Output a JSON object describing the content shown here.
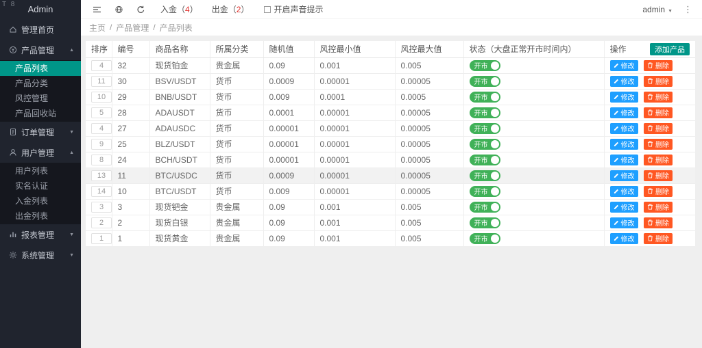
{
  "app": {
    "logo_corner": "T 8",
    "title": "Admin"
  },
  "sidebar": {
    "items": [
      {
        "id": "home",
        "label": "管理首页",
        "icon": "home-icon",
        "arrow": null,
        "children": []
      },
      {
        "id": "products",
        "label": "产品管理",
        "icon": "product-icon",
        "arrow": "up",
        "children": [
          {
            "label": "产品列表",
            "active": true
          },
          {
            "label": "产品分类",
            "active": false
          },
          {
            "label": "风控管理",
            "active": false
          },
          {
            "label": "产品回收站",
            "active": false
          }
        ]
      },
      {
        "id": "orders",
        "label": "订单管理",
        "icon": "order-icon",
        "arrow": "down",
        "children": []
      },
      {
        "id": "users",
        "label": "用户管理",
        "icon": "user-icon",
        "arrow": "up",
        "children": [
          {
            "label": "用户列表",
            "active": false
          },
          {
            "label": "实名认证",
            "active": false
          },
          {
            "label": "入金列表",
            "active": false
          },
          {
            "label": "出金列表",
            "active": false
          }
        ]
      },
      {
        "id": "reports",
        "label": "报表管理",
        "icon": "report-icon",
        "arrow": "down",
        "children": []
      },
      {
        "id": "system",
        "label": "系统管理",
        "icon": "gear-icon",
        "arrow": "down",
        "children": []
      }
    ]
  },
  "topbar": {
    "deposit": {
      "prefix": "入金（",
      "count": "4",
      "suffix": "）"
    },
    "withdraw": {
      "prefix": "出金（",
      "count": "2",
      "suffix": "）"
    },
    "sound_alert_label": "开启声音提示",
    "user": "admin"
  },
  "breadcrumb": {
    "items": [
      "主页",
      "产品管理",
      "产品列表"
    ],
    "separator": "/"
  },
  "table": {
    "headers": [
      {
        "id": "sort",
        "label": "排序"
      },
      {
        "id": "id",
        "label": "编号"
      },
      {
        "id": "name",
        "label": "商品名称"
      },
      {
        "id": "category",
        "label": "所属分类"
      },
      {
        "id": "random",
        "label": "随机值"
      },
      {
        "id": "risk-min",
        "label": "风控最小值"
      },
      {
        "id": "risk-max",
        "label": "风控最大值"
      },
      {
        "id": "status",
        "label": "状态（大盘正常开市时间内）"
      },
      {
        "id": "ops",
        "label": "操作"
      }
    ],
    "add_button_label": "添加产品",
    "toggle_label": "开市",
    "edit_label": "修改",
    "delete_label": "删除",
    "rows": [
      {
        "sort": "4",
        "id": "32",
        "name": "现货铂金",
        "category": "贵金属",
        "random": "0.09",
        "risk_min": "0.001",
        "risk_max": "0.005",
        "status": "on",
        "highlight": false
      },
      {
        "sort": "11",
        "id": "30",
        "name": "BSV/USDT",
        "category": "货币",
        "random": "0.0009",
        "risk_min": "0.00001",
        "risk_max": "0.00005",
        "status": "on",
        "highlight": false
      },
      {
        "sort": "10",
        "id": "29",
        "name": "BNB/USDT",
        "category": "货币",
        "random": "0.009",
        "risk_min": "0.0001",
        "risk_max": "0.0005",
        "status": "on",
        "highlight": false
      },
      {
        "sort": "5",
        "id": "28",
        "name": "ADAUSDT",
        "category": "货币",
        "random": "0.0001",
        "risk_min": "0.00001",
        "risk_max": "0.00005",
        "status": "on",
        "highlight": false
      },
      {
        "sort": "4",
        "id": "27",
        "name": "ADAUSDC",
        "category": "货币",
        "random": "0.00001",
        "risk_min": "0.00001",
        "risk_max": "0.00005",
        "status": "on",
        "highlight": false
      },
      {
        "sort": "9",
        "id": "25",
        "name": "BLZ/USDT",
        "category": "货币",
        "random": "0.00001",
        "risk_min": "0.00001",
        "risk_max": "0.00005",
        "status": "on",
        "highlight": false
      },
      {
        "sort": "8",
        "id": "24",
        "name": "BCH/USDT",
        "category": "货币",
        "random": "0.00001",
        "risk_min": "0.00001",
        "risk_max": "0.00005",
        "status": "on",
        "highlight": false
      },
      {
        "sort": "13",
        "id": "11",
        "name": "BTC/USDC",
        "category": "货币",
        "random": "0.0009",
        "risk_min": "0.00001",
        "risk_max": "0.00005",
        "status": "on",
        "highlight": true
      },
      {
        "sort": "14",
        "id": "10",
        "name": "BTC/USDT",
        "category": "货币",
        "random": "0.009",
        "risk_min": "0.00001",
        "risk_max": "0.00005",
        "status": "on",
        "highlight": false
      },
      {
        "sort": "3",
        "id": "3",
        "name": "现货钯金",
        "category": "贵金属",
        "random": "0.09",
        "risk_min": "0.001",
        "risk_max": "0.005",
        "status": "on",
        "highlight": false
      },
      {
        "sort": "2",
        "id": "2",
        "name": "现货白银",
        "category": "贵金属",
        "random": "0.09",
        "risk_min": "0.001",
        "risk_max": "0.005",
        "status": "on",
        "highlight": false
      },
      {
        "sort": "1",
        "id": "1",
        "name": "现货黄金",
        "category": "贵金属",
        "random": "0.09",
        "risk_min": "0.001",
        "risk_max": "0.005",
        "status": "on",
        "highlight": false
      }
    ]
  },
  "colors": {
    "sidebar_bg": "#20242e",
    "submenu_bg": "#15171e",
    "active_teal": "#009688",
    "edit_blue": "#1e9fff",
    "delete_orange": "#ff5722",
    "toggle_green": "#40b158",
    "count_red": "#e0312d"
  }
}
